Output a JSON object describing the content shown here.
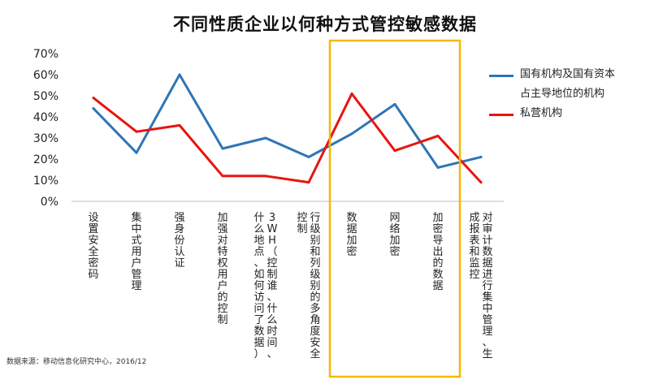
{
  "chart_data": {
    "type": "line",
    "title": "不同性质企业以何种方式管控敏感数据",
    "categories": [
      "设置安全密码",
      "集中式用户管理",
      "强身份认证",
      "加强对特权用户的控制",
      "3WH（控制谁、什么时间、什么地点、如何访问了数据）",
      "行级别和列级别的多角度安全控制",
      "数据加密",
      "网络加密",
      "加密导出的数据",
      "对审计数据进行集中管理、生成报表和监控"
    ],
    "series": [
      {
        "name": "国有机构及国有资本占主导地位的机构",
        "color": "#2e75b6",
        "values": [
          44,
          23,
          60,
          25,
          30,
          21,
          32,
          46,
          16,
          21
        ]
      },
      {
        "name": "私营机构",
        "color": "#e8140e",
        "values": [
          49,
          33,
          36,
          12,
          12,
          9,
          51,
          24,
          31,
          9
        ]
      }
    ],
    "yticks": [
      "0%",
      "10%",
      "20%",
      "30%",
      "40%",
      "50%",
      "60%",
      "70%"
    ],
    "ylim": [
      0,
      70
    ],
    "highlight": {
      "from_index": 6,
      "to_index": 8,
      "color": "#f5b800"
    },
    "legend": [
      {
        "lines": [
          "国有机构及国有资本",
          "占主导地位的机构"
        ],
        "color": "#2e75b6"
      },
      {
        "lines": [
          "私营机构"
        ],
        "color": "#e8140e"
      }
    ]
  },
  "source": "数据来源：移动信息化研究中心，2016/12"
}
